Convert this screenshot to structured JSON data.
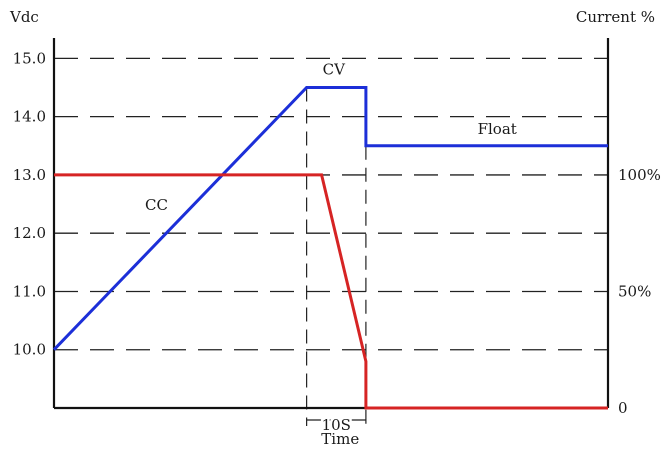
{
  "chart_data": {
    "type": "line",
    "y_left": {
      "label": "Vdc",
      "range": [
        9.0,
        15.35
      ],
      "ticks": [
        {
          "value": 10.0,
          "label": "10.0"
        },
        {
          "value": 11.0,
          "label": "11.0"
        },
        {
          "value": 12.0,
          "label": "12.0"
        },
        {
          "value": 13.0,
          "label": "13.0"
        },
        {
          "value": 14.0,
          "label": "14.0"
        },
        {
          "value": 15.0,
          "label": "15.0"
        }
      ]
    },
    "y_right": {
      "label": "Current %",
      "range": [
        0,
        100
      ],
      "ticks": [
        {
          "value": 0,
          "label": "0"
        },
        {
          "value": 50,
          "label": "50%"
        },
        {
          "value": 100,
          "label": "100%"
        }
      ]
    },
    "x_axis": {
      "label": "Time",
      "range": [
        0,
        100
      ]
    },
    "grid": "dashed-horizontal",
    "series": [
      {
        "name": "",
        "axis": "left",
        "color": "#1c2fd8",
        "points": [
          [
            0,
            10.0
          ],
          [
            45.6,
            14.5
          ],
          [
            56.3,
            14.5
          ],
          [
            56.3,
            13.5
          ],
          [
            100,
            13.5
          ]
        ]
      },
      {
        "name": "",
        "axis": "right",
        "color": "#d62424",
        "points": [
          [
            0,
            100
          ],
          [
            48.3,
            100
          ],
          [
            56.3,
            20
          ],
          [
            56.3,
            0
          ],
          [
            100,
            0
          ]
        ]
      }
    ],
    "annotations": [
      {
        "text": "CC",
        "x": 18.5,
        "y": 12.4,
        "axis": "left"
      },
      {
        "text": "CV",
        "x": 50.5,
        "y": 14.72,
        "axis": "left"
      },
      {
        "text": "Float",
        "x": 80.0,
        "y": 13.7,
        "axis": "left"
      }
    ],
    "interval_marker": {
      "label": "10S",
      "from": 45.6,
      "to": 56.3
    }
  }
}
